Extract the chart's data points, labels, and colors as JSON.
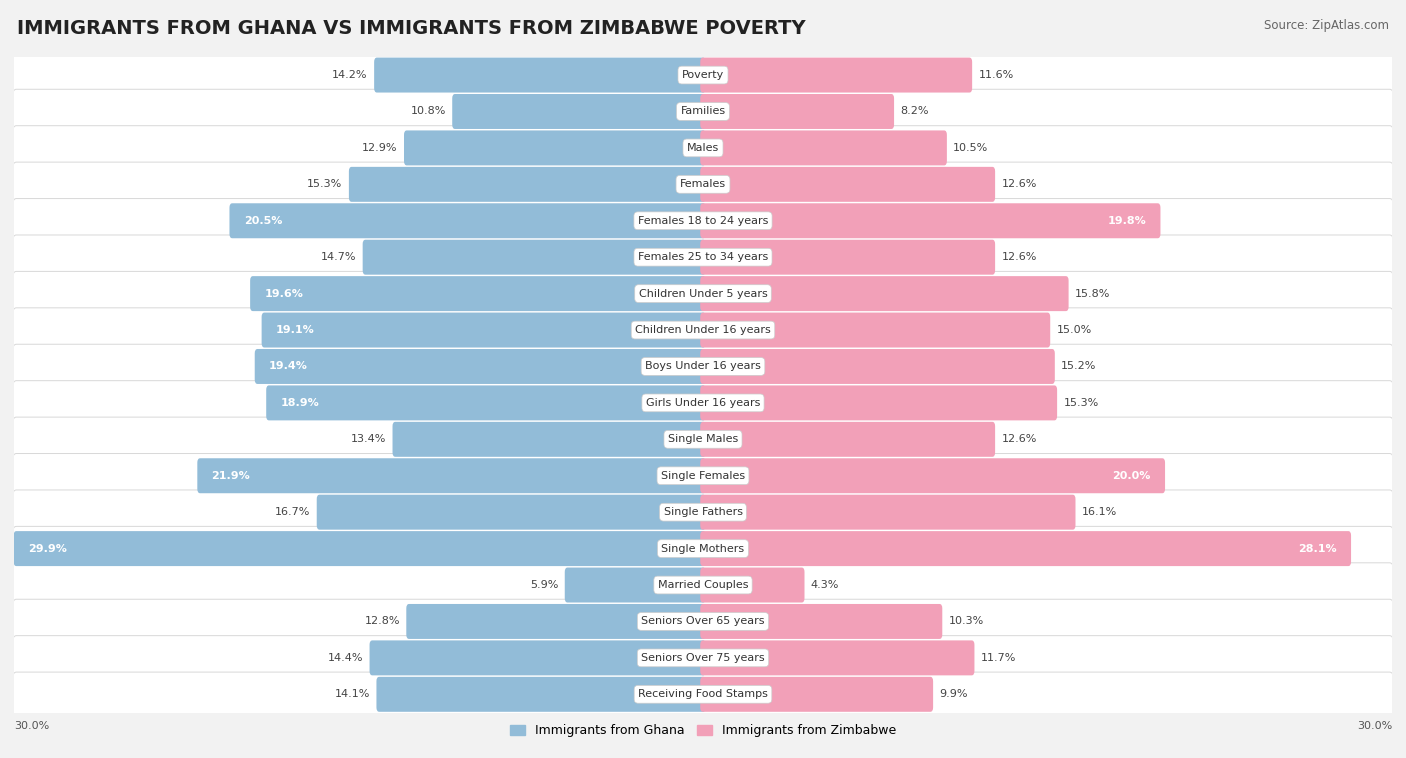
{
  "title": "IMMIGRANTS FROM GHANA VS IMMIGRANTS FROM ZIMBABWE POVERTY",
  "source": "Source: ZipAtlas.com",
  "categories": [
    "Poverty",
    "Families",
    "Males",
    "Females",
    "Females 18 to 24 years",
    "Females 25 to 34 years",
    "Children Under 5 years",
    "Children Under 16 years",
    "Boys Under 16 years",
    "Girls Under 16 years",
    "Single Males",
    "Single Females",
    "Single Fathers",
    "Single Mothers",
    "Married Couples",
    "Seniors Over 65 years",
    "Seniors Over 75 years",
    "Receiving Food Stamps"
  ],
  "ghana_values": [
    14.2,
    10.8,
    12.9,
    15.3,
    20.5,
    14.7,
    19.6,
    19.1,
    19.4,
    18.9,
    13.4,
    21.9,
    16.7,
    29.9,
    5.9,
    12.8,
    14.4,
    14.1
  ],
  "zimbabwe_values": [
    11.6,
    8.2,
    10.5,
    12.6,
    19.8,
    12.6,
    15.8,
    15.0,
    15.2,
    15.3,
    12.6,
    20.0,
    16.1,
    28.1,
    4.3,
    10.3,
    11.7,
    9.9
  ],
  "ghana_color": "#92bcd8",
  "zimbabwe_color": "#f2a0b8",
  "ghana_label": "Immigrants from Ghana",
  "zimbabwe_label": "Immigrants from Zimbabwe",
  "xlim": 30.0,
  "bg_color": "#f2f2f2",
  "bar_bg_color": "#ffffff",
  "title_fontsize": 14,
  "source_fontsize": 8.5,
  "label_fontsize": 8,
  "value_fontsize": 8,
  "legend_fontsize": 9,
  "threshold_white_text": 17.0
}
